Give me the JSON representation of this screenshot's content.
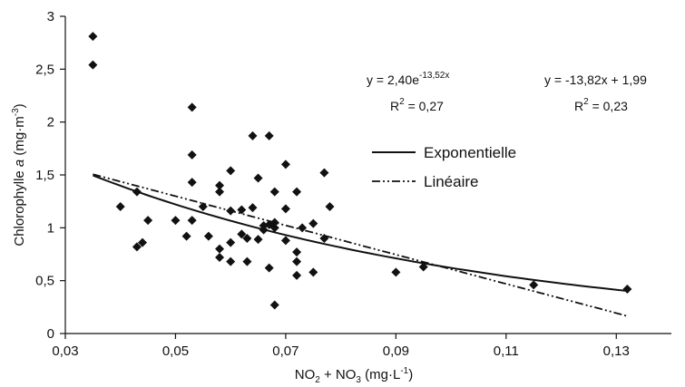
{
  "chart_data": {
    "type": "scatter",
    "xlabel": "NO2 + NO3 (mg·L-1)",
    "ylabel": "Chlorophylle a (mg·m-3)",
    "xlim": [
      0.03,
      0.14
    ],
    "ylim": [
      0,
      3
    ],
    "x_ticks": [
      "0,03",
      "0,05",
      "0,07",
      "0,09",
      "0,11",
      "0,13"
    ],
    "x_tick_values": [
      0.03,
      0.05,
      0.07,
      0.09,
      0.11,
      0.13
    ],
    "y_ticks": [
      "0",
      "0,5",
      "1",
      "1,5",
      "2",
      "2,5",
      "3"
    ],
    "y_tick_values": [
      0,
      0.5,
      1,
      1.5,
      2,
      2.5,
      3
    ],
    "grid": false,
    "legend_position": "right, middle",
    "points": [
      {
        "x": 0.035,
        "y": 2.81
      },
      {
        "x": 0.035,
        "y": 2.54
      },
      {
        "x": 0.04,
        "y": 1.2
      },
      {
        "x": 0.043,
        "y": 1.34
      },
      {
        "x": 0.043,
        "y": 0.82
      },
      {
        "x": 0.044,
        "y": 0.86
      },
      {
        "x": 0.045,
        "y": 1.07
      },
      {
        "x": 0.05,
        "y": 1.07
      },
      {
        "x": 0.052,
        "y": 0.92
      },
      {
        "x": 0.053,
        "y": 2.14
      },
      {
        "x": 0.053,
        "y": 1.69
      },
      {
        "x": 0.053,
        "y": 1.43
      },
      {
        "x": 0.053,
        "y": 1.07
      },
      {
        "x": 0.055,
        "y": 1.2
      },
      {
        "x": 0.056,
        "y": 0.92
      },
      {
        "x": 0.058,
        "y": 1.4
      },
      {
        "x": 0.058,
        "y": 1.34
      },
      {
        "x": 0.058,
        "y": 0.8
      },
      {
        "x": 0.058,
        "y": 0.72
      },
      {
        "x": 0.06,
        "y": 1.54
      },
      {
        "x": 0.06,
        "y": 1.16
      },
      {
        "x": 0.06,
        "y": 0.86
      },
      {
        "x": 0.06,
        "y": 0.68
      },
      {
        "x": 0.062,
        "y": 1.17
      },
      {
        "x": 0.062,
        "y": 0.94
      },
      {
        "x": 0.063,
        "y": 0.9
      },
      {
        "x": 0.063,
        "y": 0.68
      },
      {
        "x": 0.064,
        "y": 1.87
      },
      {
        "x": 0.064,
        "y": 1.19
      },
      {
        "x": 0.065,
        "y": 1.47
      },
      {
        "x": 0.065,
        "y": 0.89
      },
      {
        "x": 0.066,
        "y": 1.02
      },
      {
        "x": 0.066,
        "y": 0.98
      },
      {
        "x": 0.067,
        "y": 1.87
      },
      {
        "x": 0.067,
        "y": 1.03
      },
      {
        "x": 0.067,
        "y": 0.62
      },
      {
        "x": 0.068,
        "y": 1.34
      },
      {
        "x": 0.068,
        "y": 1.05
      },
      {
        "x": 0.068,
        "y": 1.0
      },
      {
        "x": 0.068,
        "y": 0.27
      },
      {
        "x": 0.07,
        "y": 1.6
      },
      {
        "x": 0.07,
        "y": 1.18
      },
      {
        "x": 0.07,
        "y": 0.88
      },
      {
        "x": 0.072,
        "y": 1.34
      },
      {
        "x": 0.072,
        "y": 0.77
      },
      {
        "x": 0.072,
        "y": 0.68
      },
      {
        "x": 0.072,
        "y": 0.55
      },
      {
        "x": 0.073,
        "y": 1.0
      },
      {
        "x": 0.075,
        "y": 1.04
      },
      {
        "x": 0.075,
        "y": 0.58
      },
      {
        "x": 0.077,
        "y": 0.9
      },
      {
        "x": 0.077,
        "y": 1.52
      },
      {
        "x": 0.078,
        "y": 1.2
      },
      {
        "x": 0.09,
        "y": 0.58
      },
      {
        "x": 0.095,
        "y": 0.63
      },
      {
        "x": 0.115,
        "y": 0.46
      },
      {
        "x": 0.132,
        "y": 0.42
      }
    ],
    "series": [
      {
        "name": "Exponentielle",
        "kind": "exponential",
        "a": 2.4,
        "b": -13.52,
        "x_range": [
          0.035,
          0.132
        ],
        "line_style": "solid",
        "equation_line1": "y = 2,40e",
        "equation_exponent": "-13,52x",
        "r2_label": "R",
        "r2_value": " = 0,27"
      },
      {
        "name": "Linéaire",
        "kind": "linear",
        "slope": -13.82,
        "intercept": 1.99,
        "x_range": [
          0.035,
          0.132
        ],
        "line_style": "dash-dot-dot",
        "equation_line1": "y = -13,82x + 1,99",
        "r2_label": "R",
        "r2_value": " = 0,23"
      }
    ],
    "x_title": {
      "no": "NO",
      "sub1": "2",
      "plus": " + NO",
      "sub2": "3",
      "unit_open": " (mg·L",
      "unit_exp": "-1",
      "unit_close": ")"
    },
    "y_title": {
      "main": "Chlorophylle ",
      "italic": "a",
      "unit_open": " (mg·m",
      "unit_exp": "-3",
      "unit_close": ")"
    },
    "r2_sup": "2"
  }
}
